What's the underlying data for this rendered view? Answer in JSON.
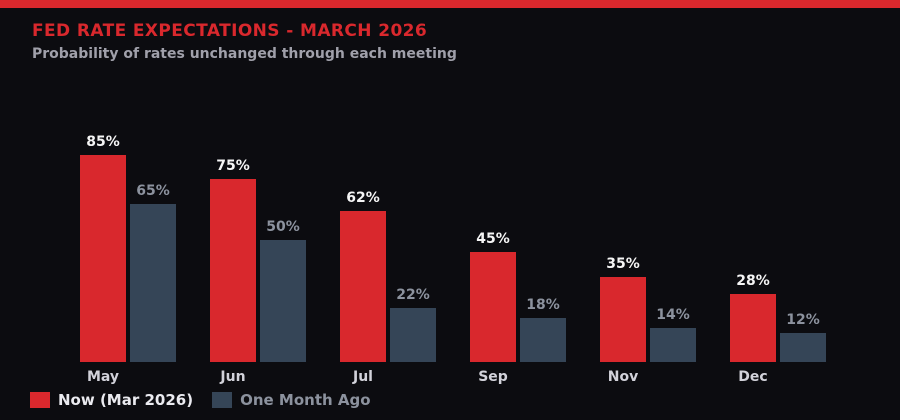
{
  "header": {
    "title": "FED RATE EXPECTATIONS - MARCH 2026",
    "subtitle": "Probability of rates unchanged through each meeting"
  },
  "chart_data": {
    "type": "bar",
    "title": "FED RATE EXPECTATIONS - MARCH 2026",
    "subtitle": "Probability of rates unchanged through each meeting",
    "categories": [
      "May",
      "Jun",
      "Jul",
      "Sep",
      "Nov",
      "Dec"
    ],
    "series": [
      {
        "name": "Now (Mar 2026)",
        "color": "#d9282d",
        "values": [
          85,
          75,
          62,
          45,
          35,
          28
        ]
      },
      {
        "name": "One Month Ago",
        "color": "#354557",
        "values": [
          65,
          50,
          22,
          18,
          14,
          12
        ]
      }
    ],
    "value_suffix": "%",
    "ylim": [
      0,
      100
    ],
    "grid": false,
    "axes_visible": false,
    "legend_position": "bottom-left"
  },
  "colors": {
    "background": "#0c0c10",
    "accent_red": "#d9282d",
    "slate": "#354557",
    "title_text": "#d9282d",
    "subtitle_text": "#a0a0aa",
    "category_text": "#d2d2da",
    "value_label_now": "#f5f5f5",
    "value_label_ago": "#8c929e",
    "legend_now_text": "#ebebf0",
    "legend_ago_text": "#8c929e"
  }
}
